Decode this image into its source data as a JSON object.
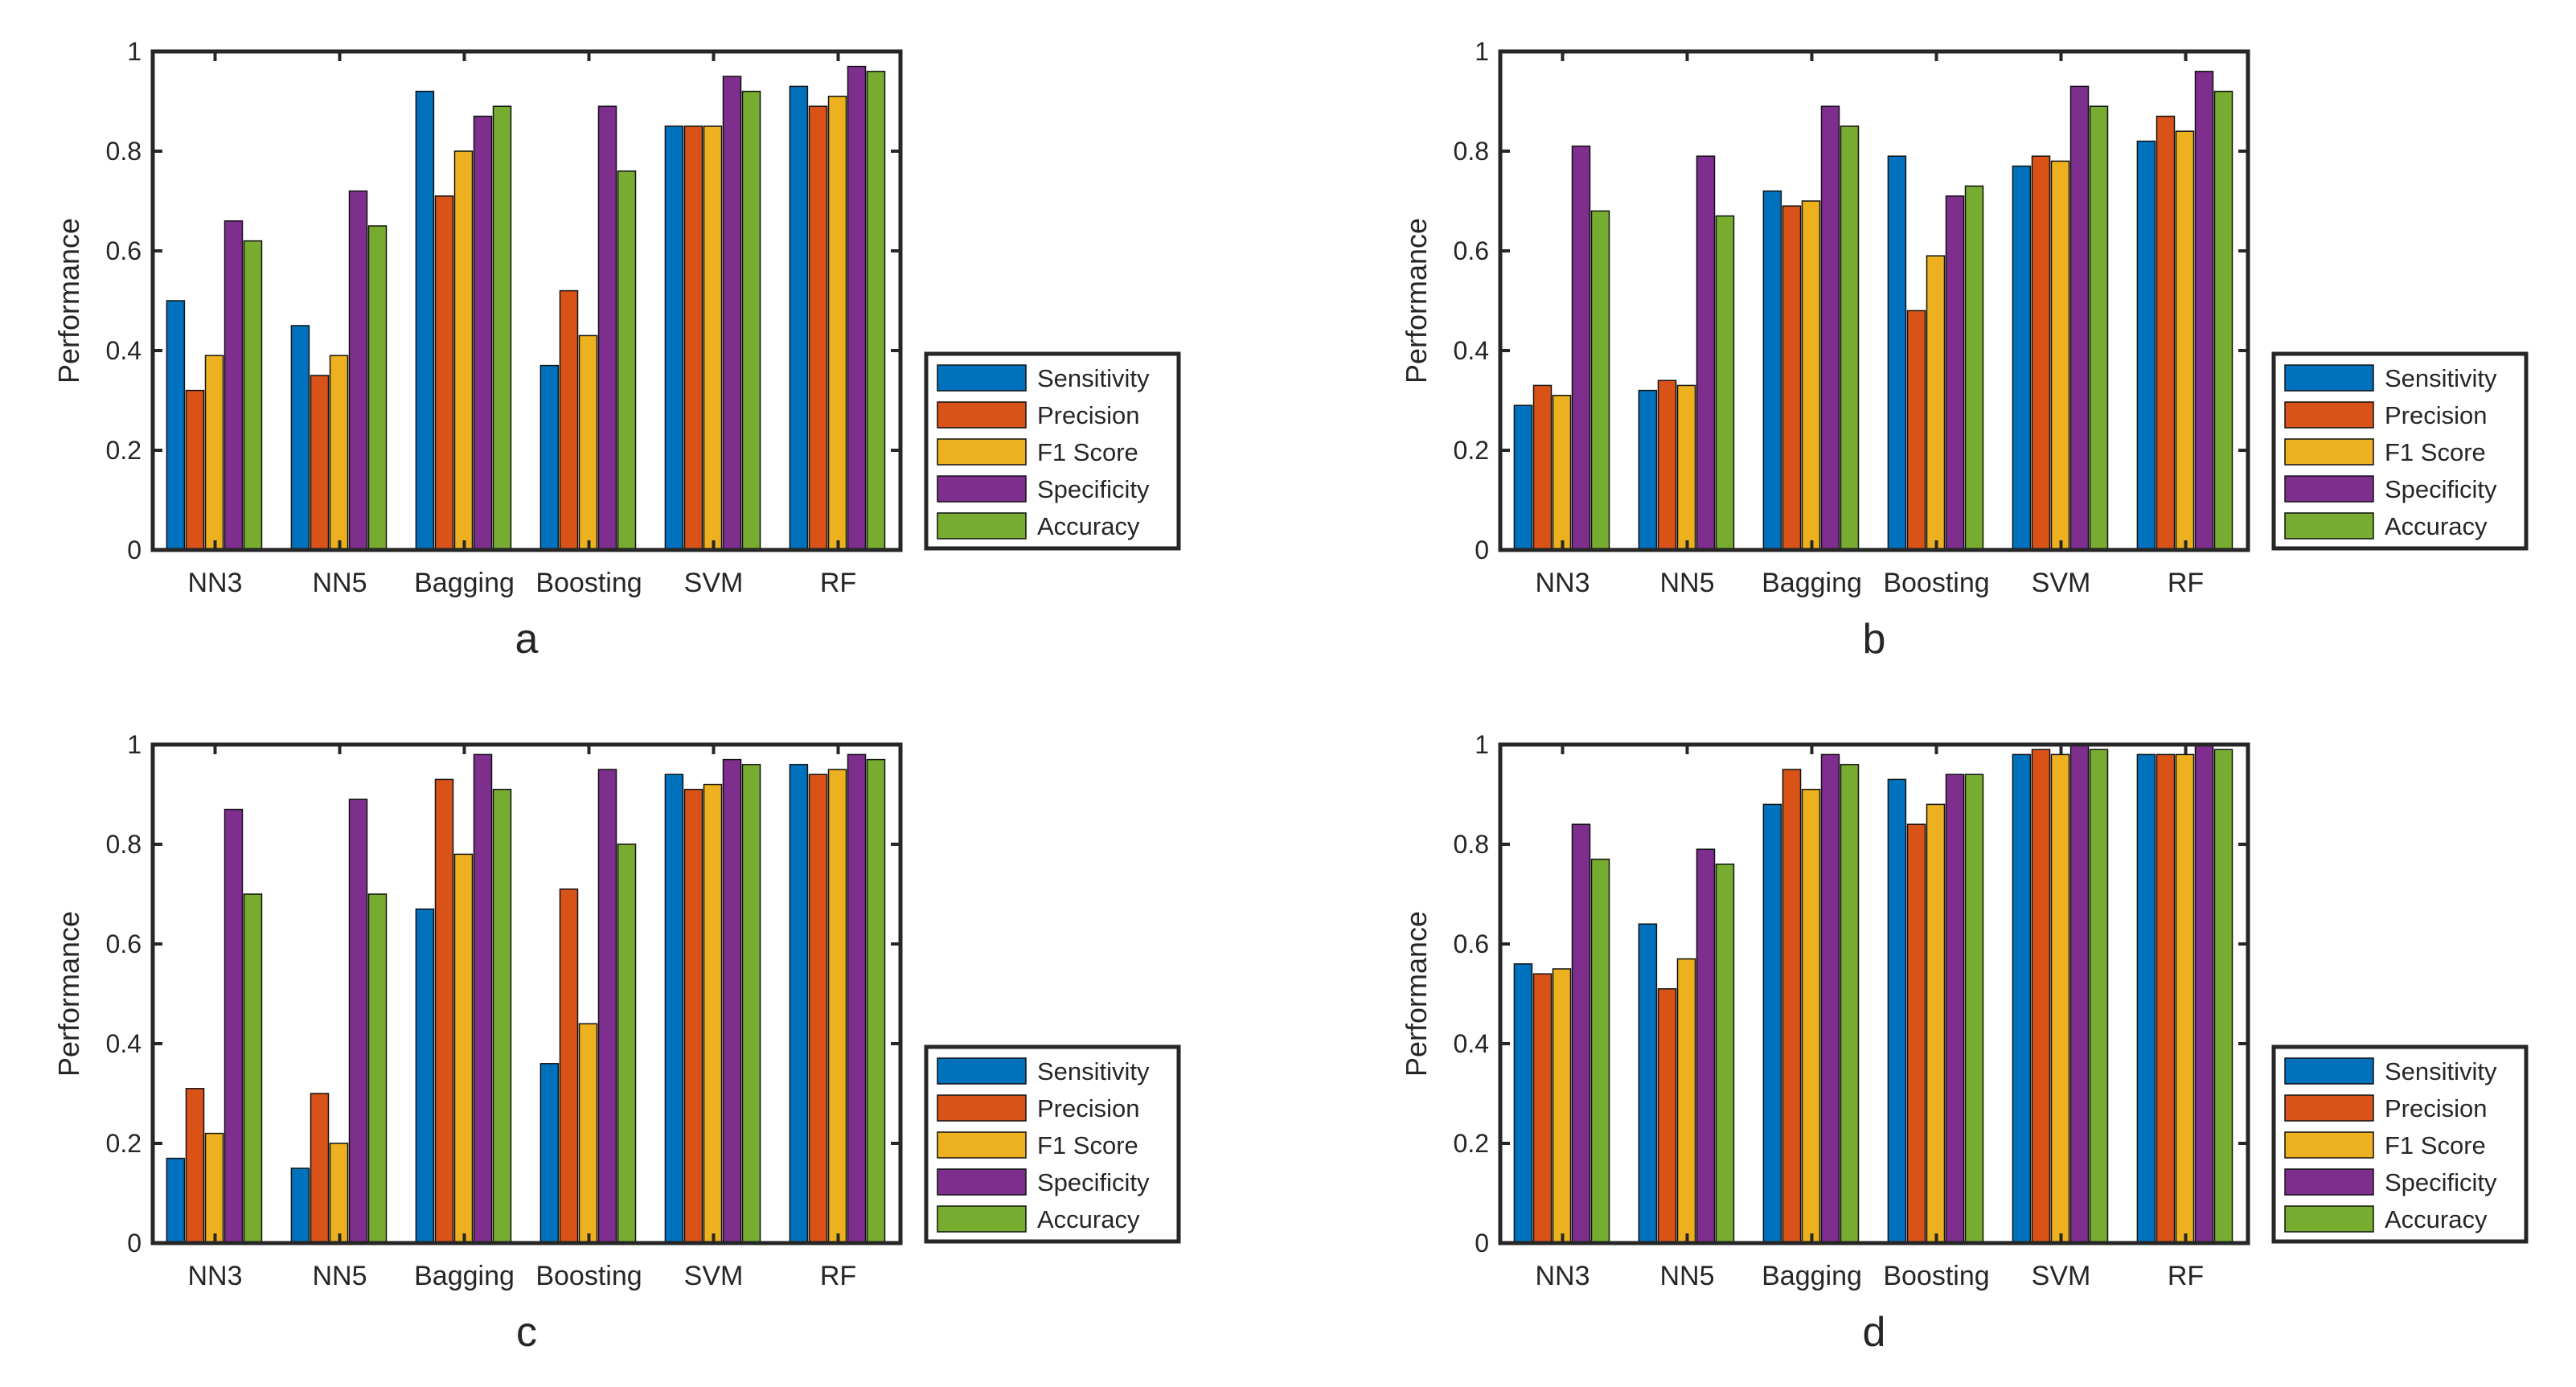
{
  "colors": {
    "Sensitivity": "#0072BD",
    "Precision": "#D95319",
    "F1 Score": "#EDB120",
    "Specificity": "#7E2F8E",
    "Accuracy": "#77AC30",
    "axis": "#262626"
  },
  "chart_data": [
    {
      "type": "bar",
      "panel_label": "a",
      "ylabel": "Performance",
      "xlabel": "",
      "ylim": [
        0,
        1
      ],
      "yticks": [
        "0",
        "0.2",
        "0.4",
        "0.6",
        "0.8",
        "1"
      ],
      "categories": [
        "NN3",
        "NN5",
        "Bagging",
        "Boosting",
        "SVM",
        "RF"
      ],
      "legend": [
        "Sensitivity",
        "Precision",
        "F1 Score",
        "Specificity",
        "Accuracy"
      ],
      "legend_position": "outside-right-bottom",
      "series": [
        {
          "name": "Sensitivity",
          "values": [
            0.5,
            0.45,
            0.92,
            0.37,
            0.85,
            0.93
          ]
        },
        {
          "name": "Precision",
          "values": [
            0.32,
            0.35,
            0.71,
            0.52,
            0.85,
            0.89
          ]
        },
        {
          "name": "F1 Score",
          "values": [
            0.39,
            0.39,
            0.8,
            0.43,
            0.85,
            0.91
          ]
        },
        {
          "name": "Specificity",
          "values": [
            0.66,
            0.72,
            0.87,
            0.89,
            0.95,
            0.97
          ]
        },
        {
          "name": "Accuracy",
          "values": [
            0.62,
            0.65,
            0.89,
            0.76,
            0.92,
            0.96
          ]
        }
      ]
    },
    {
      "type": "bar",
      "panel_label": "b",
      "ylabel": "Performance",
      "xlabel": "",
      "ylim": [
        0,
        1
      ],
      "yticks": [
        "0",
        "0.2",
        "0.4",
        "0.6",
        "0.8",
        "1"
      ],
      "categories": [
        "NN3",
        "NN5",
        "Bagging",
        "Boosting",
        "SVM",
        "RF"
      ],
      "legend": [
        "Sensitivity",
        "Precision",
        "F1 Score",
        "Specificity",
        "Accuracy"
      ],
      "legend_position": "outside-right-bottom",
      "series": [
        {
          "name": "Sensitivity",
          "values": [
            0.29,
            0.32,
            0.72,
            0.79,
            0.77,
            0.82
          ]
        },
        {
          "name": "Precision",
          "values": [
            0.33,
            0.34,
            0.69,
            0.48,
            0.79,
            0.87
          ]
        },
        {
          "name": "F1 Score",
          "values": [
            0.31,
            0.33,
            0.7,
            0.59,
            0.78,
            0.84
          ]
        },
        {
          "name": "Specificity",
          "values": [
            0.81,
            0.79,
            0.89,
            0.71,
            0.93,
            0.96
          ]
        },
        {
          "name": "Accuracy",
          "values": [
            0.68,
            0.67,
            0.85,
            0.73,
            0.89,
            0.92
          ]
        }
      ]
    },
    {
      "type": "bar",
      "panel_label": "c",
      "ylabel": "Performance",
      "xlabel": "",
      "ylim": [
        0,
        1
      ],
      "yticks": [
        "0",
        "0.2",
        "0.4",
        "0.6",
        "0.8",
        "1"
      ],
      "categories": [
        "NN3",
        "NN5",
        "Bagging",
        "Boosting",
        "SVM",
        "RF"
      ],
      "legend": [
        "Sensitivity",
        "Precision",
        "F1 Score",
        "Specificity",
        "Accuracy"
      ],
      "legend_position": "outside-right-bottom",
      "series": [
        {
          "name": "Sensitivity",
          "values": [
            0.17,
            0.15,
            0.67,
            0.36,
            0.94,
            0.96
          ]
        },
        {
          "name": "Precision",
          "values": [
            0.31,
            0.3,
            0.93,
            0.71,
            0.91,
            0.94
          ]
        },
        {
          "name": "F1 Score",
          "values": [
            0.22,
            0.2,
            0.78,
            0.44,
            0.92,
            0.95
          ]
        },
        {
          "name": "Specificity",
          "values": [
            0.87,
            0.89,
            0.98,
            0.95,
            0.97,
            0.98
          ]
        },
        {
          "name": "Accuracy",
          "values": [
            0.7,
            0.7,
            0.91,
            0.8,
            0.96,
            0.97
          ]
        }
      ]
    },
    {
      "type": "bar",
      "panel_label": "d",
      "ylabel": "Performance",
      "xlabel": "",
      "ylim": [
        0,
        1
      ],
      "yticks": [
        "0",
        "0.2",
        "0.4",
        "0.6",
        "0.8",
        "1"
      ],
      "categories": [
        "NN3",
        "NN5",
        "Bagging",
        "Boosting",
        "SVM",
        "RF"
      ],
      "legend": [
        "Sensitivity",
        "Precision",
        "F1 Score",
        "Specificity",
        "Accuracy"
      ],
      "legend_position": "outside-right-bottom",
      "series": [
        {
          "name": "Sensitivity",
          "values": [
            0.56,
            0.64,
            0.88,
            0.93,
            0.98,
            0.98
          ]
        },
        {
          "name": "Precision",
          "values": [
            0.54,
            0.51,
            0.95,
            0.84,
            0.99,
            0.98
          ]
        },
        {
          "name": "F1 Score",
          "values": [
            0.55,
            0.57,
            0.91,
            0.88,
            0.98,
            0.98
          ]
        },
        {
          "name": "Specificity",
          "values": [
            0.84,
            0.79,
            0.98,
            0.94,
            1.0,
            1.0
          ]
        },
        {
          "name": "Accuracy",
          "values": [
            0.77,
            0.76,
            0.96,
            0.94,
            0.99,
            0.99
          ]
        }
      ]
    }
  ]
}
